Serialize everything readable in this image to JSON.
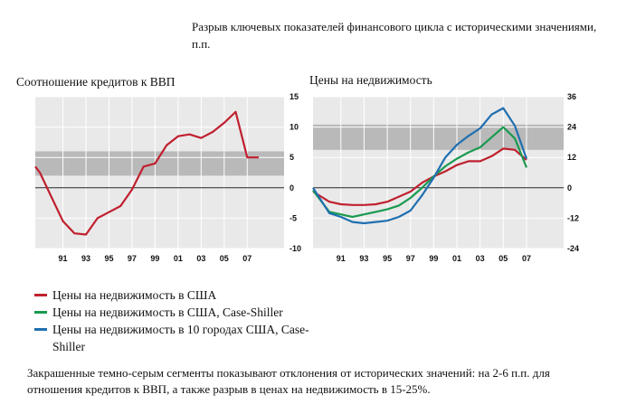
{
  "header": {
    "title": "Разрыв ключевых показателей финансового цикла с историческими значениями, п.п."
  },
  "legend": [
    {
      "label": "Цены на недвижимость в США",
      "color": "#c0202f"
    },
    {
      "label": "Цены  на недвижимость в США, Case-Shiller",
      "color": "#1a9a50"
    },
    {
      "label": "Цены на недвижимость в 10 городах США, Case-Shiller",
      "color": "#1f6fb0"
    }
  ],
  "note": "Закрашенные темно-серым сегменты показывают отклонения от исторических значений: на 2-6 п.п. для отношения кредитов к ВВП, а также разрыв в ценах на недвижимость в 15-25%.",
  "colors": {
    "band": "#b9b9b9",
    "grid": "#ffffff",
    "plot_bg": "#e9e9e9"
  },
  "chart_data": [
    {
      "type": "line",
      "title": "Соотношение кредитов к ВВП",
      "x_ticks": [
        "91",
        "93",
        "95",
        "97",
        "99",
        "01",
        "03",
        "05",
        "07"
      ],
      "y_ticks": [
        "15",
        "10",
        "5",
        "0",
        "-5",
        "-10"
      ],
      "xlim": [
        1988.6,
        2010.2
      ],
      "ylim": [
        -10,
        15
      ],
      "band": [
        2,
        6
      ],
      "grid": true,
      "series": [
        {
          "color": "#c0202f",
          "x": [
            1988.6,
            1989,
            1990,
            1991,
            1992,
            1993,
            1994,
            1995,
            1996,
            1997,
            1998,
            1999,
            2000,
            2001,
            2002,
            2003,
            2004,
            2005,
            2006,
            2007,
            2008
          ],
          "y": [
            3.5,
            2.5,
            -1.5,
            -5.5,
            -7.5,
            -7.7,
            -5,
            -4,
            -3,
            -0.3,
            3.5,
            4,
            7,
            8.5,
            8.8,
            8.2,
            9.2,
            10.7,
            12.5,
            5,
            5
          ]
        }
      ]
    },
    {
      "type": "line",
      "title": "Цены на недвижимость",
      "x_ticks": [
        "91",
        "93",
        "95",
        "97",
        "99",
        "01",
        "03",
        "05",
        "07"
      ],
      "y_ticks": [
        "36",
        "24",
        "12",
        "0",
        "-12",
        "-24"
      ],
      "xlim": [
        1988.6,
        2010.2
      ],
      "ylim": [
        -24,
        36
      ],
      "band": [
        15,
        25
      ],
      "grid": true,
      "series": [
        {
          "name": "Цены на недвижимость в США",
          "color": "#c0202f",
          "x": [
            1988.6,
            1990,
            1991,
            1992,
            1993,
            1994,
            1995,
            1996,
            1997,
            1998,
            1999,
            2000,
            2001,
            2002,
            2003,
            2004,
            2005,
            2006,
            2007
          ],
          "y": [
            -1.5,
            -5.5,
            -6.5,
            -6.8,
            -6.8,
            -6.5,
            -5.5,
            -3.5,
            -1.5,
            2,
            4.5,
            6.5,
            9,
            10.5,
            10.5,
            12.5,
            15.5,
            15,
            11
          ]
        },
        {
          "name": "Цены  на недвижимость в США, Case-Shiller",
          "color": "#1a9a50",
          "x": [
            1988.6,
            1990,
            1991,
            1992,
            1993,
            1994,
            1995,
            1996,
            1997,
            1998,
            1999,
            2000,
            2001,
            2002,
            2003,
            2004,
            2005,
            2006,
            2007
          ],
          "y": [
            -1,
            -9.5,
            -10.5,
            -11.5,
            -10.5,
            -9.5,
            -8.5,
            -7,
            -4,
            0,
            4.5,
            8.5,
            11.5,
            14,
            16,
            20,
            24,
            19.5,
            8
          ]
        },
        {
          "name": "Цены на недвижимость в 10 городах США, Case-Shiller",
          "color": "#1f6fb0",
          "x": [
            1988.6,
            1990,
            1991,
            1992,
            1993,
            1994,
            1995,
            1996,
            1997,
            1998,
            1999,
            2000,
            2001,
            2002,
            2003,
            2004,
            2005,
            2006,
            2007
          ],
          "y": [
            0,
            -10,
            -11.5,
            -13.5,
            -14,
            -13.5,
            -13,
            -11.5,
            -9,
            -3,
            4,
            12,
            17,
            20.5,
            23.5,
            29,
            31.5,
            24.5,
            11.5
          ]
        }
      ]
    }
  ]
}
